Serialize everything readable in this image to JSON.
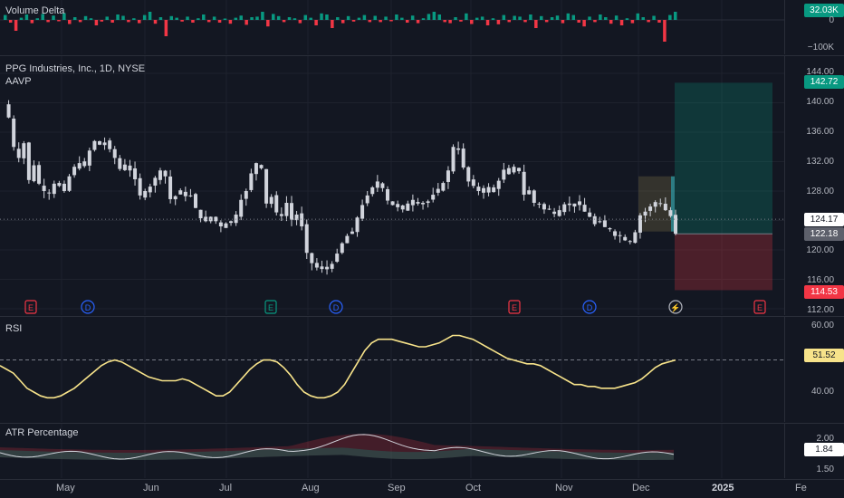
{
  "chart_data": {
    "type": "candlestick",
    "title": "PPG Industries, Inc., 1D, NYSE",
    "overlay": "AAVP",
    "x_months": [
      "May",
      "Jun",
      "Jul",
      "Aug",
      "Sep",
      "Oct",
      "Nov",
      "Dec",
      "2025",
      "Fe"
    ],
    "price_ticks": [
      "144.00",
      "140.00",
      "136.00",
      "132.00",
      "128.00",
      "124.00",
      "120.00",
      "116.00",
      "112.00"
    ],
    "price_ylim": [
      112,
      144
    ],
    "price_tags": {
      "take_profit": "142.72",
      "current": "124.17",
      "close": "122.18",
      "stop_loss": "114.53"
    },
    "events": [
      "E",
      "D",
      "E",
      "D",
      "E",
      "D",
      "⚡",
      "E"
    ],
    "price_path": [
      139.8,
      138,
      134,
      132.5,
      134.5,
      129.5,
      131.5,
      129,
      128,
      127.8,
      129,
      128.7,
      128,
      130,
      131.3,
      131.8,
      131.4,
      133.5,
      134.8,
      134.3,
      134.6,
      133.7,
      132.5,
      131,
      131.6,
      130.8,
      129.6,
      127.4,
      128,
      128.6,
      129.8,
      130.8,
      130,
      126.9,
      127.3,
      128.1,
      127.3,
      127.4,
      125.7,
      124.3,
      123.9,
      124.5,
      123.9,
      123.2,
      123.6,
      123.9,
      124.8,
      126.8,
      128,
      130.4,
      131.8,
      131.1,
      126.3,
      127.2,
      125.1,
      124.6,
      126.4,
      124.1,
      124.8,
      123.2,
      119.6,
      118.2,
      117.6,
      117.4,
      117.7,
      118.1,
      119.5,
      120.9,
      121.9,
      122.5,
      124.4,
      126.1,
      127.4,
      128.5,
      129.3,
      128.4,
      126.7,
      126.1,
      125.8,
      125.5,
      126.3,
      126.8,
      126.3,
      126.4,
      126.6,
      127.5,
      128.3,
      129.1,
      130.8,
      134,
      133.6,
      131.2,
      129.3,
      128.7,
      128,
      128.4,
      127.8,
      128.5,
      129.4,
      130.9,
      130.3,
      131.3,
      130.7,
      127.5,
      128.1,
      126.4,
      126.2,
      125.5,
      125.5,
      124.9,
      125.4,
      126.2,
      126.1,
      126.3,
      126.1,
      125.2,
      124.5,
      123.5,
      123.9,
      123.1,
      122.8,
      121.9,
      122,
      121.3,
      121.2,
      122.4,
      124.7,
      125.2,
      125.9,
      126.5,
      126.3,
      125.4,
      124.6,
      122.2
    ],
    "volume_delta": {
      "ticks": [
        "32.03K",
        "0",
        "−100K"
      ],
      "values": [
        18,
        -10,
        -40,
        8,
        20,
        -12,
        6,
        22,
        -8,
        16,
        -5,
        25,
        -15,
        10,
        -8,
        14,
        6,
        -20,
        -6,
        12,
        -10,
        20,
        15,
        -8,
        6,
        -12,
        18,
        30,
        -14,
        10,
        -60,
        14,
        8,
        -6,
        12,
        -10,
        6,
        20,
        -8,
        12,
        -10,
        5,
        -14,
        8,
        16,
        -18,
        10,
        12,
        30,
        -24,
        22,
        14,
        -8,
        10,
        6,
        -12,
        18,
        8,
        -20,
        24,
        20,
        -30,
        10,
        -12,
        14,
        -6,
        8,
        18,
        -8,
        15,
        -8,
        12,
        -5,
        20,
        8,
        -10,
        16,
        -12,
        6,
        22,
        30,
        20,
        -8,
        -12,
        10,
        -6,
        24,
        -15,
        8,
        12,
        -20,
        6,
        -16,
        18,
        -8,
        15,
        12,
        -8,
        20,
        -30,
        14,
        -8,
        10,
        16,
        -12,
        24,
        18,
        -10,
        -24,
        12,
        -8,
        20,
        10,
        -14,
        16,
        -20,
        6,
        -12,
        24,
        10,
        -8,
        15,
        -10,
        -80,
        18,
        30
      ]
    },
    "rsi": {
      "label": "RSI",
      "ticks": [
        "60.00",
        "40.00"
      ],
      "value": "51.52",
      "ylim": [
        37,
        61
      ],
      "series": [
        50,
        49,
        48,
        46,
        44,
        43,
        42,
        41.5,
        41.5,
        42,
        43,
        44,
        45.5,
        47,
        48.5,
        50,
        51,
        51.5,
        51,
        50,
        49,
        48,
        47,
        46.5,
        46,
        46,
        46,
        46.5,
        46,
        45,
        44,
        43,
        42,
        42,
        43,
        45,
        47,
        49,
        50.5,
        51.5,
        51.5,
        51,
        49.5,
        47.5,
        45,
        43,
        42,
        41.5,
        41.5,
        42,
        43,
        45,
        48,
        51,
        54,
        56,
        57,
        57,
        57,
        56.5,
        56,
        55.5,
        55,
        55,
        55.5,
        56,
        57,
        58,
        58,
        57.5,
        57,
        56,
        55,
        54,
        53,
        52,
        51.5,
        51,
        50.5,
        50.5,
        50,
        49,
        48,
        47,
        46,
        45,
        45,
        44.5,
        44.5,
        44,
        44,
        44,
        44.5,
        45,
        45.5,
        46.5,
        48,
        49.5,
        50.5,
        51,
        51.5
      ]
    },
    "atr": {
      "label": "ATR Percentage",
      "ticks": [
        "2.00",
        "1.50"
      ],
      "value": "1.84",
      "ylim": [
        1.45,
        2.15
      ]
    }
  }
}
